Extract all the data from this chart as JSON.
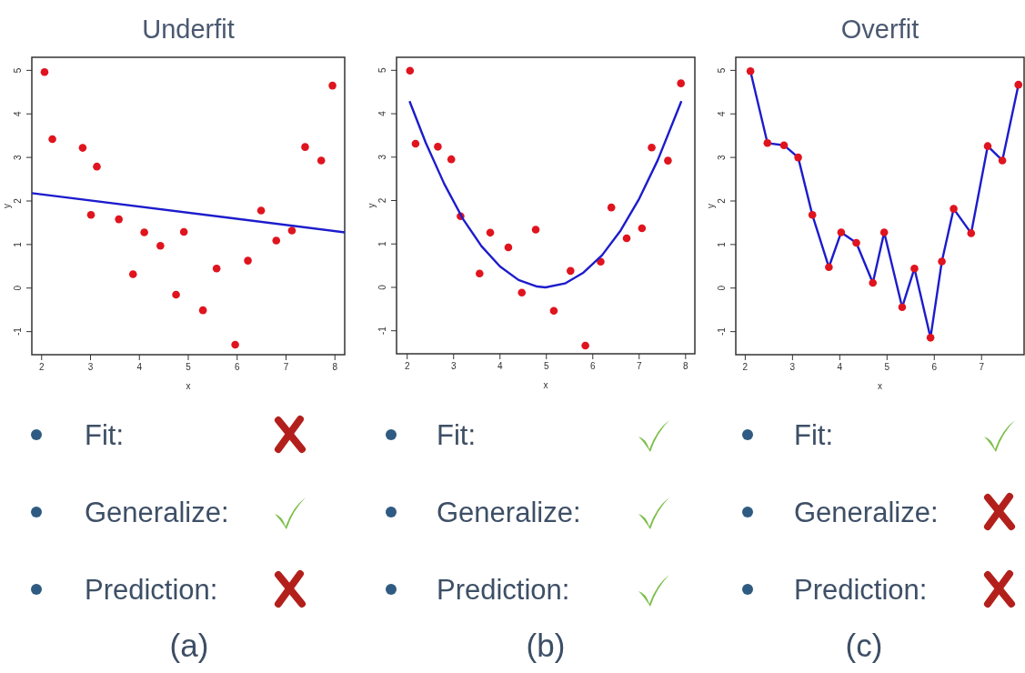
{
  "chart_data": [
    {
      "type": "scatter",
      "title": "Underfit",
      "xlabel": "x",
      "ylabel": "y",
      "xlim": [
        1.8,
        8.2
      ],
      "ylim": [
        -1.53,
        5.3
      ],
      "xticks": [
        2,
        3,
        4,
        5,
        6,
        7,
        8
      ],
      "yticks": [
        -1,
        0,
        1,
        2,
        3,
        4,
        5
      ],
      "annotations": [
        "Fit:",
        "Generalize:",
        "Prediction:",
        "(a)"
      ],
      "series": [
        {
          "type": "scatter",
          "color": "#e0141e",
          "x": [
            2.06,
            2.22,
            2.84,
            3.13,
            3.01,
            3.58,
            4.1,
            4.43,
            3.87,
            4.91,
            4.75,
            5.3,
            5.58,
            5.96,
            6.22,
            6.49,
            6.8,
            7.12,
            7.39,
            7.72,
            7.95
          ],
          "values": [
            4.96,
            3.42,
            3.22,
            2.79,
            1.68,
            1.58,
            1.28,
            0.97,
            0.32,
            1.29,
            -0.15,
            -0.51,
            0.45,
            -1.3,
            0.63,
            1.78,
            1.09,
            1.32,
            3.24,
            2.93,
            4.65
          ]
        },
        {
          "type": "line",
          "color": "#1c1ccc",
          "x": [
            1.8,
            8.2
          ],
          "values": [
            2.18,
            1.28
          ]
        }
      ]
    },
    {
      "type": "scatter",
      "xlabel": "x",
      "ylabel": "y",
      "xlim": [
        1.77,
        8.2
      ],
      "ylim": [
        -1.53,
        5.3
      ],
      "xticks": [
        2,
        3,
        4,
        5,
        6,
        7,
        8
      ],
      "yticks": [
        -1,
        0,
        1,
        2,
        3,
        4,
        5
      ],
      "annotations": [
        "Fit:",
        "Generalize:",
        "Prediction:",
        "(b)"
      ],
      "series": [
        {
          "type": "scatter",
          "color": "#e0141e",
          "x": [
            2.06,
            2.18,
            2.66,
            2.95,
            3.15,
            3.56,
            3.79,
            4.18,
            4.47,
            4.77,
            5.16,
            5.52,
            5.84,
            6.17,
            6.4,
            6.73,
            7.06,
            7.27,
            7.62,
            7.9
          ],
          "values": [
            4.99,
            3.31,
            3.24,
            2.95,
            1.64,
            0.32,
            1.26,
            0.92,
            -0.12,
            1.33,
            -0.54,
            0.38,
            -1.34,
            0.59,
            1.84,
            1.13,
            1.36,
            3.22,
            2.92,
            4.7
          ]
        },
        {
          "type": "line",
          "color": "#1c1ccc",
          "x": [
            2.05,
            2.4,
            2.8,
            3.2,
            3.6,
            4.0,
            4.4,
            4.8,
            4.98,
            5.4,
            5.8,
            6.2,
            6.6,
            7.0,
            7.4,
            7.91
          ],
          "values": [
            4.29,
            3.33,
            2.38,
            1.58,
            0.95,
            0.48,
            0.17,
            0.02,
            0,
            0.09,
            0.34,
            0.74,
            1.31,
            2.04,
            2.93,
            4.29
          ]
        }
      ]
    },
    {
      "type": "scatter",
      "title": "Overfit",
      "xlabel": "x",
      "ylabel": "y",
      "xlim": [
        1.8,
        7.9
      ],
      "ylim": [
        -1.53,
        5.3
      ],
      "xticks": [
        2,
        3,
        4,
        5,
        6,
        7
      ],
      "yticks": [
        -1,
        0,
        1,
        2,
        3,
        4,
        5
      ],
      "annotations": [
        "Fit:",
        "Generalize:",
        "Prediction:",
        "(c)"
      ],
      "series": [
        {
          "type": "line",
          "color": "#1c1ccc",
          "x": [
            2.11,
            2.47,
            2.82,
            3.12,
            3.42,
            3.77,
            4.03,
            4.35,
            4.7,
            4.94,
            5.32,
            5.58,
            5.92,
            6.16,
            6.41,
            6.78,
            7.13,
            7.44,
            7.78
          ],
          "values": [
            4.98,
            3.33,
            3.28,
            3.0,
            1.68,
            0.48,
            1.28,
            1.04,
            0.12,
            1.28,
            -0.44,
            0.45,
            -1.14,
            0.61,
            1.82,
            1.26,
            3.26,
            2.93,
            4.67
          ]
        },
        {
          "type": "scatter",
          "color": "#e0141e",
          "x": [
            2.11,
            2.47,
            2.82,
            3.12,
            3.42,
            3.77,
            4.03,
            4.35,
            4.7,
            4.94,
            5.32,
            5.58,
            5.92,
            6.16,
            6.41,
            6.78,
            7.13,
            7.44,
            7.78
          ],
          "values": [
            4.98,
            3.33,
            3.28,
            3.0,
            1.68,
            0.48,
            1.28,
            1.04,
            0.12,
            1.28,
            -0.44,
            0.45,
            -1.14,
            0.61,
            1.82,
            1.26,
            3.26,
            2.93,
            4.67
          ]
        }
      ]
    }
  ]
}
